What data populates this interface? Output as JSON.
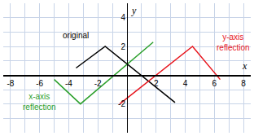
{
  "chart_data": {
    "type": "line",
    "series": [
      {
        "name": "original",
        "color": "#000000",
        "x": [
          -3.5,
          -1.5,
          3.3
        ],
        "values": [
          0.5,
          2,
          -1.9
        ]
      },
      {
        "name": "x-axis reflection",
        "color": "#2ca02c",
        "x": [
          -5,
          -3.2,
          1.8
        ],
        "values": [
          -0.3,
          -2,
          2.3
        ]
      },
      {
        "name": "y-axis reflection",
        "color": "#e8141c",
        "x": [
          -0.5,
          4.5,
          6.4
        ],
        "values": [
          -2,
          2,
          -0.3
        ]
      }
    ],
    "x_label": "x",
    "y_label": "y",
    "xlim": [
      -8.5,
      8.5
    ],
    "ylim": [
      -4,
      5
    ],
    "xticks": [
      -8,
      -6,
      -4,
      -2,
      2,
      4,
      6,
      8
    ],
    "yticks": [
      -2,
      2,
      4
    ],
    "grid": true
  }
}
